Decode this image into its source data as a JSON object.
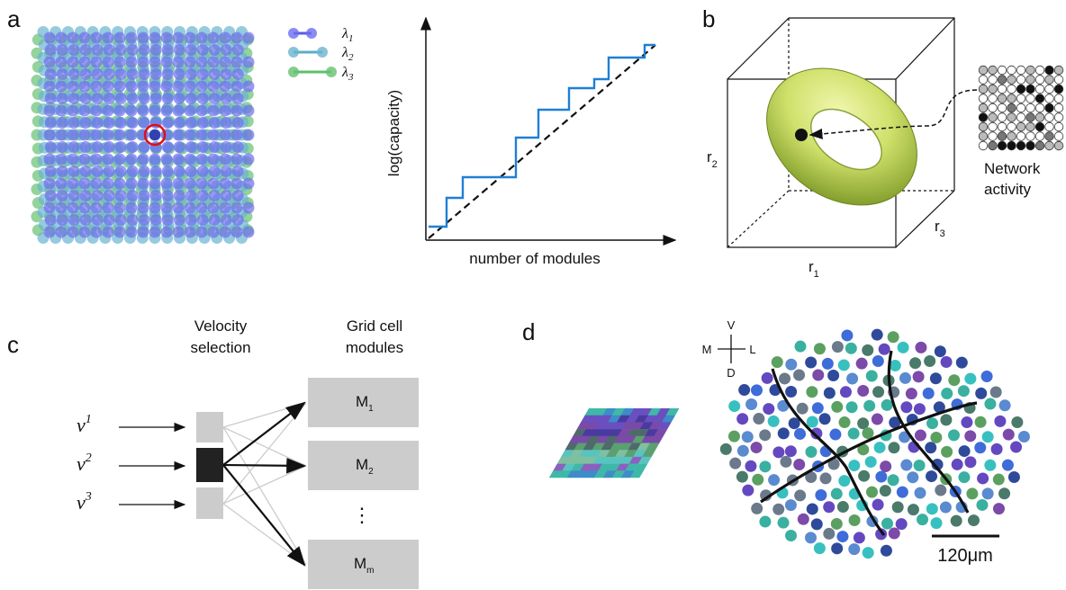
{
  "panel_a": {
    "label": "a",
    "legend": [
      {
        "base": "λ",
        "sub": "1"
      },
      {
        "base": "λ",
        "sub": "2"
      },
      {
        "base": "λ",
        "sub": "3"
      }
    ],
    "y_axis_label": "log(capacity)",
    "x_axis_label": "number of modules"
  },
  "panel_b": {
    "label": "b",
    "axes": [
      {
        "base": "r",
        "sub": "1"
      },
      {
        "base": "r",
        "sub": "2"
      },
      {
        "base": "r",
        "sub": "3"
      }
    ],
    "caption": [
      "Network",
      "activity"
    ]
  },
  "panel_c": {
    "label": "c",
    "column_titles": [
      [
        "Velocity",
        "selection"
      ],
      [
        "Grid cell",
        "modules"
      ]
    ],
    "inputs": [
      {
        "base": "v",
        "sup": "1"
      },
      {
        "base": "v",
        "sup": "2"
      },
      {
        "base": "v",
        "sup": "3"
      }
    ],
    "modules": [
      {
        "base": "M",
        "sub": "1"
      },
      {
        "base": "M",
        "sub": "2"
      },
      {
        "base": "M",
        "sub": "m"
      }
    ],
    "ellipsis": "⋮"
  },
  "panel_d": {
    "label": "d",
    "compass": {
      "up": "V",
      "left": "M",
      "right": "L",
      "down": "D"
    },
    "scale_bar": "120μm"
  }
}
